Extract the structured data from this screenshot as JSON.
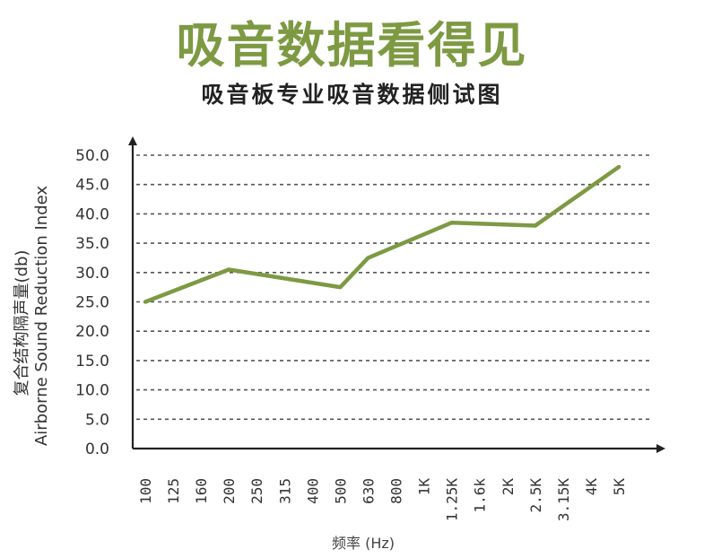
{
  "header": {
    "title": "吸音数据看得见",
    "subtitle": "吸音板专业吸音数据侧试图"
  },
  "colors": {
    "title": "#7d9a43",
    "line": "#7d9a43",
    "axis": "#222222",
    "grid": "#555555"
  },
  "chart_data": {
    "type": "line",
    "ylabel_cn": "复合结构隔声量(db)",
    "ylabel_en": "Airborne Sound Reduction Index",
    "xlabel": "频率 (Hz)",
    "ylim": [
      0,
      50
    ],
    "y_ticks": [
      "0.0",
      "5.0",
      "10.0",
      "15.0",
      "20.0",
      "25.0",
      "30.0",
      "35.0",
      "40.0",
      "45.0",
      "50.0"
    ],
    "grid": true,
    "categories": [
      "100",
      "125",
      "160",
      "200",
      "250",
      "315",
      "400",
      "500",
      "630",
      "800",
      "1K",
      "1.25K",
      "1.6k",
      "2K",
      "2.5K",
      "3.15K",
      "4K",
      "5K"
    ],
    "series": [
      {
        "x": [
          "100",
          "200",
          "500",
          "630",
          "1.25K",
          "2.5K",
          "5K"
        ],
        "values": [
          25.0,
          30.5,
          27.5,
          32.5,
          38.5,
          38.0,
          48.0
        ]
      }
    ]
  }
}
